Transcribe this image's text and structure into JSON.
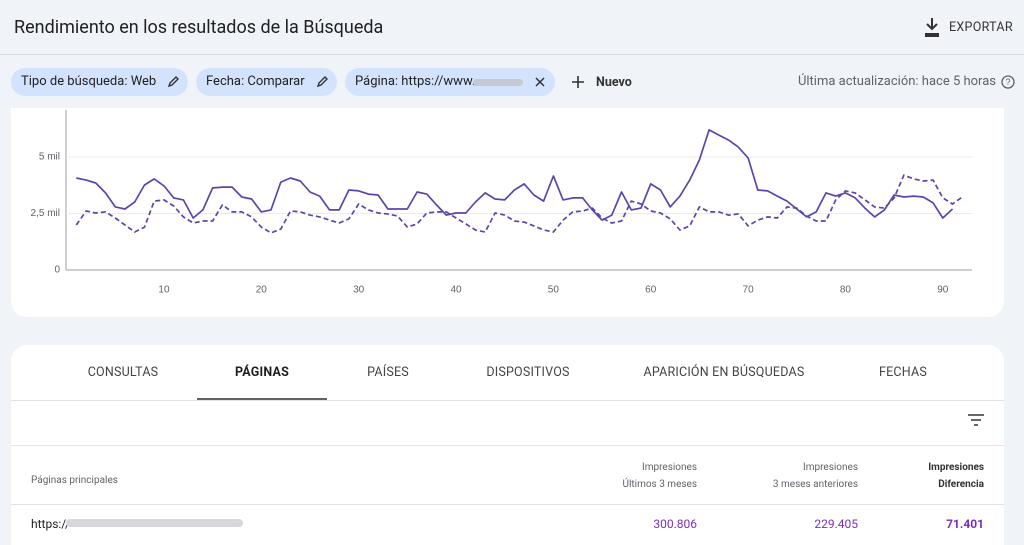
{
  "header": {
    "title": "Rendimiento en los resultados de la Búsqueda",
    "export": "EXPORTAR"
  },
  "filters": {
    "chips": [
      "Tipo de búsqueda: Web",
      "Fecha: Comparar",
      "Página: https://www."
    ],
    "new": "Nuevo",
    "updated": "Última actualización: hace 5 horas"
  },
  "chart_data": {
    "type": "line",
    "x": [
      1,
      2,
      3,
      4,
      5,
      6,
      7,
      8,
      9,
      10,
      11,
      12,
      13,
      14,
      15,
      16,
      17,
      18,
      19,
      20,
      21,
      22,
      23,
      24,
      25,
      26,
      27,
      28,
      29,
      30,
      31,
      32,
      33,
      34,
      35,
      36,
      37,
      38,
      39,
      40,
      41,
      42,
      43,
      44,
      45,
      46,
      47,
      48,
      49,
      50,
      51,
      52,
      53,
      54,
      55,
      56,
      57,
      58,
      59,
      60,
      61,
      62,
      63,
      64,
      65,
      66,
      67,
      68,
      69,
      70,
      71,
      72,
      73,
      74,
      75,
      76,
      77,
      78,
      79,
      80,
      81,
      82,
      83,
      84,
      85,
      86,
      87,
      88,
      89,
      90,
      91,
      92
    ],
    "series": [
      {
        "color": "#5b45ad",
        "dashed": false,
        "values": [
          4070,
          3980,
          3850,
          3410,
          2790,
          2700,
          3010,
          3760,
          4030,
          3720,
          3190,
          3100,
          2300,
          2660,
          3630,
          3670,
          3670,
          3230,
          3140,
          2570,
          2660,
          3890,
          4070,
          3940,
          3450,
          3270,
          2660,
          2660,
          3540,
          3500,
          3360,
          3320,
          2700,
          2700,
          2700,
          3450,
          3360,
          2880,
          2430,
          2520,
          2520,
          3010,
          3410,
          3140,
          3100,
          3540,
          3810,
          3320,
          3050,
          4160,
          3100,
          3190,
          3190,
          2660,
          2210,
          2430,
          3450,
          2660,
          2740,
          3810,
          3540,
          2790,
          3270,
          3980,
          4870,
          6200,
          5970,
          5750,
          5440,
          4960,
          3540,
          3500,
          3270,
          3050,
          2700,
          2350,
          2570,
          3410,
          3270,
          3410,
          3190,
          2740,
          2350,
          2660,
          3320,
          3230,
          3270,
          3230,
          2970,
          2300,
          2700,
          null
        ]
      },
      {
        "color": "#5b45ad",
        "dashed": true,
        "values": [
          1990,
          2610,
          2520,
          2570,
          2300,
          1990,
          1680,
          1900,
          3050,
          3100,
          2830,
          2350,
          2080,
          2170,
          2170,
          2880,
          2570,
          2570,
          2350,
          1900,
          1640,
          1810,
          2610,
          2570,
          2430,
          2350,
          2210,
          2080,
          2260,
          2920,
          2660,
          2520,
          2480,
          2390,
          1900,
          2040,
          2520,
          2570,
          2570,
          2300,
          2040,
          1770,
          1680,
          2520,
          2430,
          2170,
          2120,
          1950,
          1770,
          1680,
          2210,
          2570,
          2610,
          2740,
          2300,
          2080,
          2170,
          3050,
          2920,
          2610,
          2520,
          2260,
          1770,
          1950,
          2790,
          2570,
          2570,
          2430,
          2480,
          1950,
          2210,
          2350,
          2300,
          2790,
          2740,
          2390,
          2170,
          2170,
          3100,
          3500,
          3410,
          3100,
          2790,
          2740,
          3190,
          4200,
          4030,
          3940,
          3980,
          3190,
          2920,
          3230
        ]
      }
    ],
    "xlim": [
      0,
      93
    ],
    "xticks": [
      10,
      20,
      30,
      40,
      50,
      60,
      70,
      80,
      90
    ],
    "ylim": [
      0,
      7000
    ],
    "yticks": [
      0,
      {
        "value": 2500,
        "label": "2,5 mil"
      },
      {
        "value": 5000,
        "label": "5 mil"
      }
    ],
    "grid": true
  },
  "tabs": {
    "items": [
      "CONSULTAS",
      "PÁGINAS",
      "PAÍSES",
      "DISPOSITIVOS",
      "APARICIÓN EN BÚSQUEDAS",
      "FECHAS"
    ],
    "selected": 1
  },
  "table": {
    "columns": [
      [
        "Páginas principales"
      ],
      [
        "Impresiones",
        "Últimos 3 meses"
      ],
      [
        "Impresiones",
        "3 meses anteriores"
      ],
      [
        "Impresiones",
        "Diferencia"
      ]
    ],
    "rows": [
      [
        "https://",
        "300.806",
        "229.405",
        "71.401"
      ]
    ]
  }
}
